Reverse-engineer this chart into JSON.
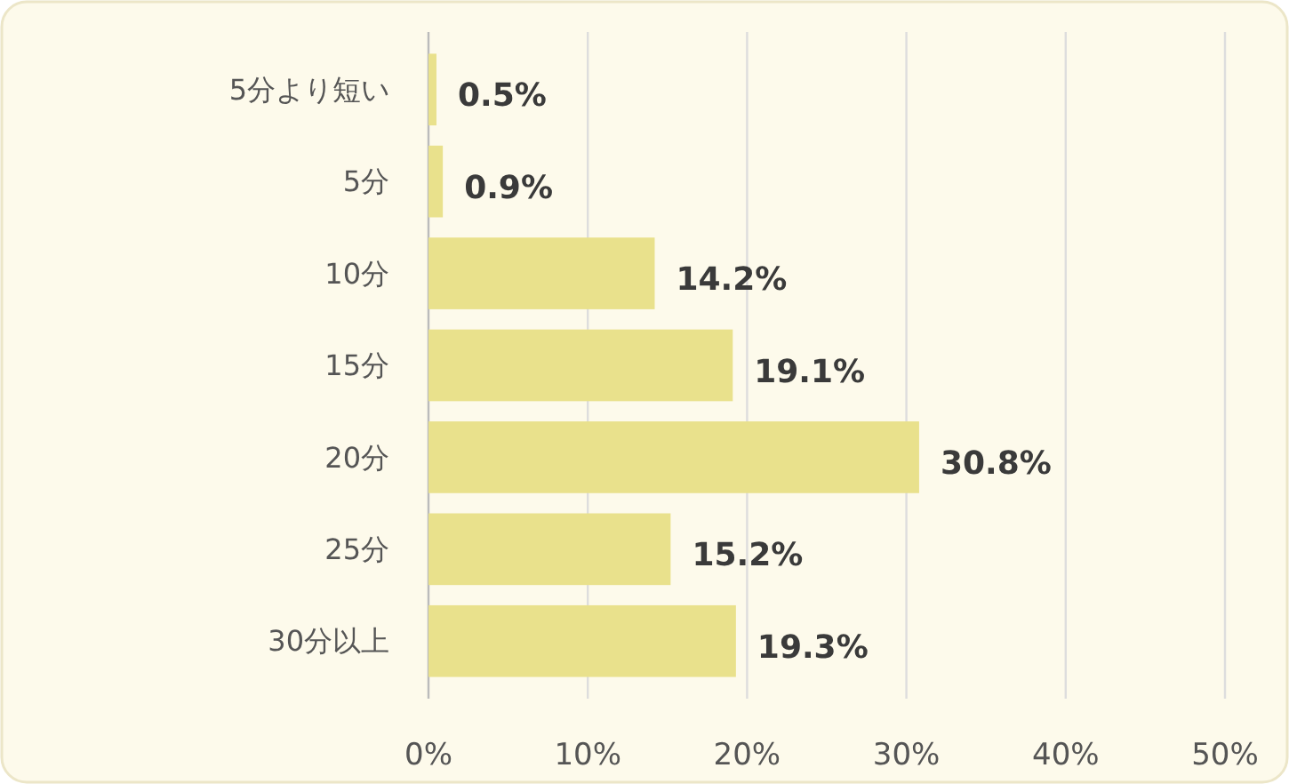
{
  "chart_data": {
    "type": "bar",
    "orientation": "horizontal",
    "categories": [
      "5分より短い",
      "5分",
      "10分",
      "15分",
      "20分",
      "25分",
      "30分以上"
    ],
    "values": [
      0.5,
      0.9,
      14.2,
      19.1,
      30.8,
      15.2,
      19.3
    ],
    "value_labels": [
      "0.5%",
      "0.9%",
      "14.2%",
      "19.1%",
      "30.8%",
      "15.2%",
      "19.3%"
    ],
    "color": "#e9e18c",
    "xlim": [
      0,
      50
    ],
    "xticks": [
      {
        "value": 0,
        "label": "0%"
      },
      {
        "value": 10,
        "label": "10%"
      },
      {
        "value": 20,
        "label": "20%"
      },
      {
        "value": 30,
        "label": "30%"
      },
      {
        "value": 40,
        "label": "40%"
      },
      {
        "value": 50,
        "label": "50%"
      }
    ],
    "grid": "x"
  }
}
